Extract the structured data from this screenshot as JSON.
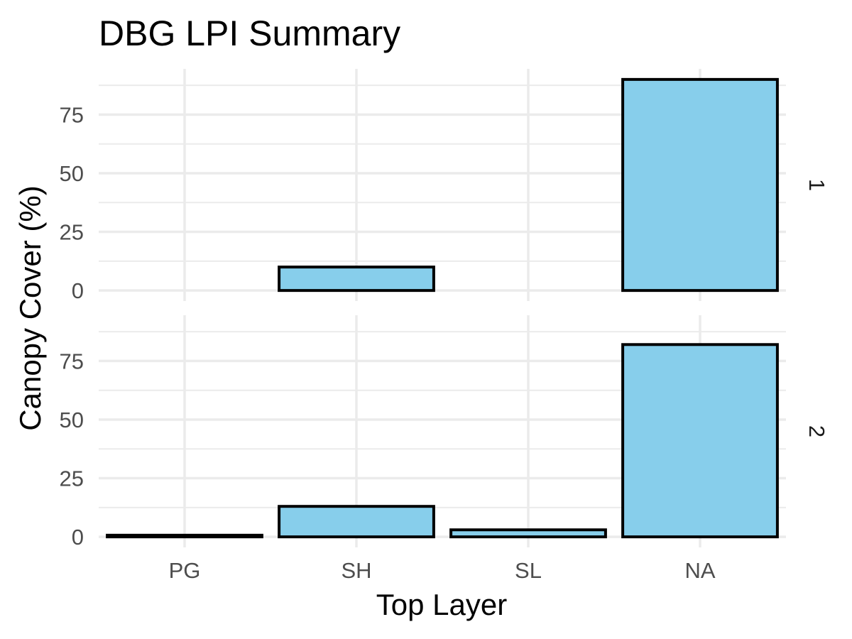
{
  "chart_data": {
    "type": "bar",
    "title": "DBG LPI Summary",
    "xlabel": "Top Layer",
    "ylabel": "Canopy Cover (%)",
    "categories": [
      "PG",
      "SH",
      "SL",
      "NA"
    ],
    "y_ticks": [
      0,
      25,
      50,
      75
    ],
    "ylim": [
      -4.5,
      94.5
    ],
    "bar_color": "#87CEEB",
    "bar_border_color": "#000000",
    "grid": true,
    "facets": [
      {
        "label": "1",
        "values": [
          0,
          10,
          0,
          90
        ]
      },
      {
        "label": "2",
        "values": [
          0.7,
          13,
          3,
          82
        ]
      }
    ]
  }
}
